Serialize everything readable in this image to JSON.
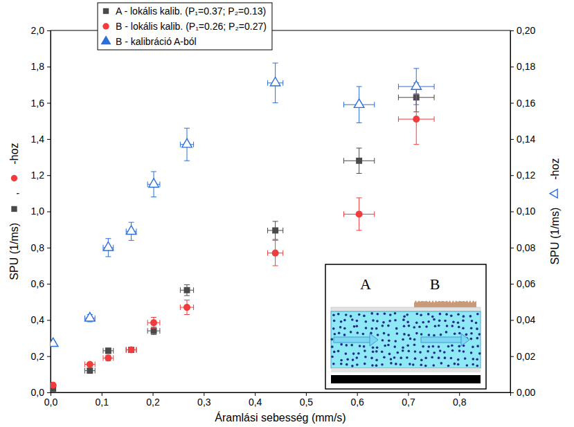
{
  "chart_data": {
    "type": "scatter",
    "xlabel": "Áramlási sebesség (mm/s)",
    "ylabel": "SPU (1/ms)",
    "ylabel_parts": [
      ",",
      "-hoz"
    ],
    "y2label": "SPU (1/ms)",
    "y2label_parts": [
      "-hoz"
    ],
    "xlim": [
      0,
      0.9
    ],
    "xticks": [
      {
        "value": 0,
        "label": "0,0"
      },
      {
        "value": 0.1,
        "label": "0,1"
      },
      {
        "value": 0.2,
        "label": "0,2"
      },
      {
        "value": 0.3,
        "label": "0,3"
      },
      {
        "value": 0.4,
        "label": "0,4"
      },
      {
        "value": 0.5,
        "label": "0,5"
      },
      {
        "value": 0.6,
        "label": "0,6"
      },
      {
        "value": 0.7,
        "label": "0,7"
      },
      {
        "value": 0.8,
        "label": "0,8"
      }
    ],
    "ylim": [
      0,
      2
    ],
    "yticks": [
      {
        "value": 0,
        "label": "0,0"
      },
      {
        "value": 0.2,
        "label": "0,2"
      },
      {
        "value": 0.4,
        "label": "0,4"
      },
      {
        "value": 0.6,
        "label": "0,6"
      },
      {
        "value": 0.8,
        "label": "0,8"
      },
      {
        "value": 1,
        "label": "1,0"
      },
      {
        "value": 1.2,
        "label": "1,2"
      },
      {
        "value": 1.4,
        "label": "1,4"
      },
      {
        "value": 1.6,
        "label": "1,6"
      },
      {
        "value": 1.8,
        "label": "1,8"
      },
      {
        "value": 2,
        "label": "2,0"
      }
    ],
    "y2lim": [
      0,
      0.2
    ],
    "y2ticks": [
      {
        "value": 0,
        "label": "0,00"
      },
      {
        "value": 0.02,
        "label": "0,02"
      },
      {
        "value": 0.04,
        "label": "0,04"
      },
      {
        "value": 0.06,
        "label": "0,06"
      },
      {
        "value": 0.08,
        "label": "0,08"
      },
      {
        "value": 0.1,
        "label": "0,10"
      },
      {
        "value": 0.12,
        "label": "0,12"
      },
      {
        "value": 0.14,
        "label": "0,14"
      },
      {
        "value": 0.16,
        "label": "0,16"
      },
      {
        "value": 0.18,
        "label": "0,18"
      },
      {
        "value": 0.2,
        "label": "0,20"
      }
    ],
    "grid": false,
    "legend": "top-left",
    "annotations": [
      "A",
      "B"
    ],
    "series": [
      {
        "name": "A - lokális kalib. (P₁=0.37; P₂=0.13)",
        "color": "#4a4a4a",
        "marker": "square",
        "x": [
          0.005,
          0.077,
          0.113,
          0.158,
          0.202,
          0.267,
          0.44,
          0.604,
          0.716
        ],
        "values": [
          0.02,
          0.12,
          0.23,
          0.235,
          0.34,
          0.565,
          0.895,
          1.28,
          1.63
        ],
        "xerr": [
          0.003,
          0.01,
          0.01,
          0.01,
          0.012,
          0.013,
          0.015,
          0.03,
          0.035
        ],
        "yerr": [
          0.005,
          0.01,
          0.015,
          0.015,
          0.02,
          0.03,
          0.05,
          0.07,
          0.08
        ]
      },
      {
        "name": "B - lokális kalib. (P₁=0.26; P₂=0.27)",
        "color": "#f03c3c",
        "marker": "circle",
        "x": [
          0.005,
          0.077,
          0.113,
          0.158,
          0.202,
          0.267,
          0.44,
          0.604,
          0.716
        ],
        "values": [
          0.04,
          0.155,
          0.19,
          0.235,
          0.385,
          0.47,
          0.77,
          0.985,
          1.51
        ],
        "xerr": [
          0.003,
          0.01,
          0.01,
          0.01,
          0.012,
          0.013,
          0.015,
          0.03,
          0.035
        ],
        "yerr": [
          0.005,
          0.01,
          0.015,
          0.015,
          0.03,
          0.04,
          0.07,
          0.09,
          0.14
        ]
      },
      {
        "name": "B - kalibráció A-ból",
        "color": "#2a6fdb",
        "marker": "open-triangle",
        "axis": "y2",
        "x": [
          0.005,
          0.077,
          0.113,
          0.158,
          0.202,
          0.267,
          0.44,
          0.604,
          0.716
        ],
        "values": [
          0.027,
          0.041,
          0.08,
          0.089,
          0.115,
          0.137,
          0.171,
          0.159,
          0.169
        ],
        "xerr": [
          0.003,
          0.01,
          0.01,
          0.01,
          0.012,
          0.013,
          0.015,
          0.03,
          0.035
        ],
        "yerr": [
          0.001,
          0.002,
          0.005,
          0.005,
          0.007,
          0.009,
          0.011,
          0.01,
          0.01
        ]
      }
    ]
  }
}
